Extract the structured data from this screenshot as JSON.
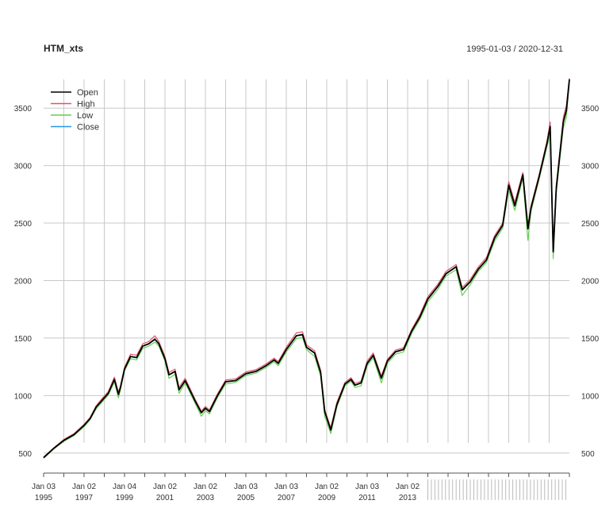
{
  "chart_data": {
    "type": "line",
    "title": "HTM_xts",
    "date_range": "1995-01-03 / 2020-12-31",
    "ylim": [
      450,
      3750
    ],
    "y_ticks": [
      500,
      1000,
      1500,
      2000,
      2500,
      3000,
      3500
    ],
    "grid": true,
    "legend_position": "top-left",
    "x_tick_labels": [
      {
        "month": "Jan 03",
        "year": "1995"
      },
      {
        "month": "Jan 02",
        "year": "1997"
      },
      {
        "month": "Jan 04",
        "year": "1999"
      },
      {
        "month": "Jan 02",
        "year": "2001"
      },
      {
        "month": "Jan 02",
        "year": "2003"
      },
      {
        "month": "Jan 03",
        "year": "2005"
      },
      {
        "month": "Jan 03",
        "year": "2007"
      },
      {
        "month": "Jan 02",
        "year": "2009"
      },
      {
        "month": "Jan 03",
        "year": "2011"
      },
      {
        "month": "Jan 02",
        "year": "2013"
      }
    ],
    "legend": [
      "Open",
      "High",
      "Low",
      "Close"
    ],
    "colors": {
      "Open": "#000000",
      "High": "#df536b",
      "Low": "#61d04f",
      "Close": "#2297e6"
    },
    "x": [
      "1995.0",
      "1995.5",
      "1996.0",
      "1996.5",
      "1997.0",
      "1997.3",
      "1997.6",
      "1997.9",
      "1998.2",
      "1998.5",
      "1998.7",
      "1998.8",
      "1999.0",
      "1999.3",
      "1999.6",
      "1999.9",
      "2000.2",
      "2000.5",
      "2000.7",
      "2001.0",
      "2001.2",
      "2001.5",
      "2001.7",
      "2002.0",
      "2002.5",
      "2002.8",
      "2003.0",
      "2003.2",
      "2003.6",
      "2004.0",
      "2004.5",
      "2005.0",
      "2005.5",
      "2006.0",
      "2006.4",
      "2006.6",
      "2007.0",
      "2007.5",
      "2007.8",
      "2008.0",
      "2008.4",
      "2008.7",
      "2008.9",
      "2009.2",
      "2009.5",
      "2009.9",
      "2010.2",
      "2010.4",
      "2010.7",
      "2011.0",
      "2011.3",
      "2011.7",
      "2012.0",
      "2012.4",
      "2012.8",
      "2013.2",
      "2013.6",
      "2014.0",
      "2014.5",
      "2014.9",
      "2015.4",
      "2015.7",
      "2016.1",
      "2016.5",
      "2016.9",
      "2017.3",
      "2017.7",
      "2018.0",
      "2018.3",
      "2018.7",
      "2018.95",
      "2019.1",
      "2019.5",
      "2019.9",
      "2020.05",
      "2020.2",
      "2020.35",
      "2020.5",
      "2020.7",
      "2020.85",
      "2021.0"
    ],
    "series": [
      {
        "name": "Open",
        "values": [
          460,
          540,
          610,
          660,
          740,
          800,
          900,
          960,
          1020,
          1140,
          1010,
          1070,
          1230,
          1340,
          1330,
          1430,
          1450,
          1490,
          1450,
          1320,
          1180,
          1210,
          1050,
          1130,
          950,
          850,
          890,
          860,
          1000,
          1120,
          1130,
          1190,
          1210,
          1260,
          1310,
          1280,
          1400,
          1520,
          1530,
          1420,
          1370,
          1200,
          860,
          700,
          920,
          1100,
          1140,
          1090,
          1110,
          1280,
          1350,
          1150,
          1300,
          1380,
          1400,
          1560,
          1680,
          1840,
          1950,
          2060,
          2120,
          1920,
          1990,
          2100,
          2180,
          2370,
          2480,
          2830,
          2650,
          2920,
          2450,
          2630,
          2900,
          3200,
          3340,
          2250,
          2800,
          3050,
          3380,
          3480,
          3750
        ]
      },
      {
        "name": "High",
        "values": [
          465,
          545,
          618,
          668,
          750,
          810,
          912,
          975,
          1035,
          1160,
          1030,
          1085,
          1245,
          1360,
          1350,
          1450,
          1470,
          1520,
          1470,
          1340,
          1200,
          1230,
          1070,
          1150,
          965,
          865,
          905,
          875,
          1015,
          1135,
          1145,
          1205,
          1225,
          1275,
          1325,
          1295,
          1420,
          1545,
          1555,
          1440,
          1390,
          1220,
          880,
          720,
          940,
          1115,
          1155,
          1105,
          1125,
          1300,
          1370,
          1170,
          1315,
          1395,
          1415,
          1575,
          1700,
          1860,
          1970,
          2080,
          2140,
          1940,
          2010,
          2120,
          2200,
          2390,
          2500,
          2860,
          2680,
          2940,
          2480,
          2650,
          2920,
          3220,
          3380,
          2300,
          2830,
          3080,
          3420,
          3520,
          3760
        ]
      },
      {
        "name": "Low",
        "values": [
          455,
          535,
          602,
          652,
          730,
          790,
          885,
          945,
          1005,
          1120,
          980,
          1050,
          1215,
          1320,
          1310,
          1410,
          1430,
          1465,
          1430,
          1300,
          1150,
          1185,
          1020,
          1110,
          930,
          820,
          870,
          840,
          985,
          1100,
          1115,
          1175,
          1195,
          1245,
          1295,
          1260,
          1380,
          1495,
          1505,
          1400,
          1340,
          1170,
          820,
          670,
          900,
          1085,
          1125,
          1070,
          1085,
          1260,
          1330,
          1110,
          1280,
          1360,
          1380,
          1540,
          1660,
          1815,
          1925,
          2040,
          2095,
          1870,
          1965,
          2080,
          2160,
          2345,
          2455,
          2790,
          2610,
          2895,
          2350,
          2600,
          2880,
          3170,
          3270,
          2190,
          2760,
          3010,
          3330,
          3420,
          3720
        ]
      },
      {
        "name": "Close",
        "values": [
          460,
          541,
          611,
          661,
          741,
          801,
          901,
          961,
          1021,
          1141,
          1011,
          1071,
          1231,
          1341,
          1331,
          1431,
          1451,
          1491,
          1451,
          1321,
          1181,
          1211,
          1051,
          1131,
          951,
          851,
          891,
          861,
          1001,
          1121,
          1131,
          1191,
          1211,
          1261,
          1311,
          1281,
          1401,
          1521,
          1531,
          1421,
          1371,
          1201,
          861,
          701,
          921,
          1101,
          1141,
          1091,
          1111,
          1281,
          1351,
          1151,
          1301,
          1381,
          1401,
          1561,
          1681,
          1841,
          1951,
          2061,
          2121,
          1921,
          1991,
          2101,
          2181,
          2371,
          2481,
          2831,
          2651,
          2921,
          2451,
          2631,
          2901,
          3201,
          3341,
          2251,
          2801,
          3051,
          3381,
          3481,
          3751
        ]
      }
    ]
  }
}
